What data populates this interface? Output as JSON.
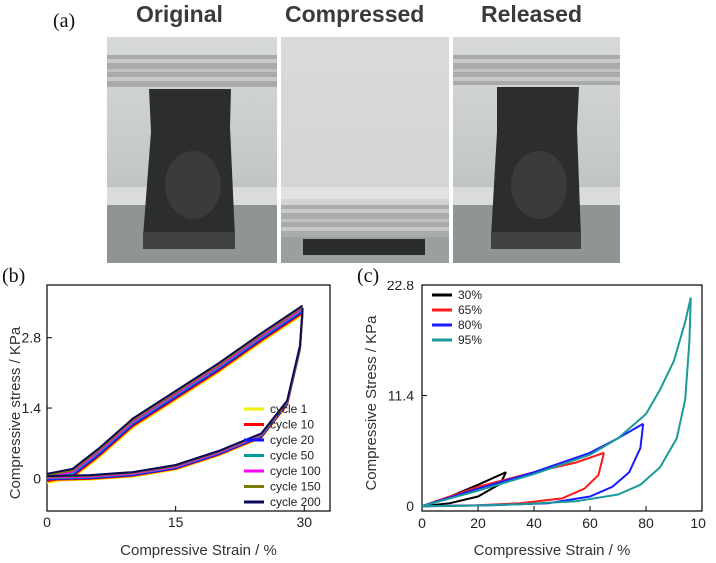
{
  "figure": {
    "panel_a_label": "(a)",
    "panel_b_label": "(b)",
    "panel_c_label": "(c)",
    "photo_titles": [
      "Original",
      "Compressed",
      "Released"
    ]
  },
  "chart_data": [
    {
      "type": "line",
      "xlabel": "Compressive Strain / %",
      "ylabel": "Compressive stress / KPa",
      "xlim": [
        0,
        33
      ],
      "ylim": [
        -0.65,
        3.85
      ],
      "x_ticks": [
        0,
        15,
        30
      ],
      "y_ticks": [
        0,
        1.4,
        2.8
      ],
      "legend_position": "bottom-right",
      "series": [
        {
          "name": "cycle 1",
          "color": "#f0f000"
        },
        {
          "name": "cycle 10",
          "color": "#ff0000"
        },
        {
          "name": "cycle 20",
          "color": "#1010ff"
        },
        {
          "name": "cycle 50",
          "color": "#009c9c"
        },
        {
          "name": "cycle 100",
          "color": "#ff00ff"
        },
        {
          "name": "cycle 150",
          "color": "#7c7c00"
        },
        {
          "name": "cycle 200",
          "color": "#0a0a5a"
        }
      ],
      "loading_curve": {
        "x": [
          0,
          3,
          6,
          10,
          15,
          20,
          25,
          29.8
        ],
        "y": [
          0,
          0.1,
          0.5,
          1.1,
          1.65,
          2.2,
          2.8,
          3.35
        ]
      },
      "unloading_curve": {
        "x": [
          29.8,
          29.5,
          28,
          25,
          20,
          15,
          10,
          5,
          0
        ],
        "y": [
          3.35,
          2.6,
          1.5,
          0.85,
          0.5,
          0.22,
          0.08,
          0.02,
          0
        ]
      }
    },
    {
      "type": "line",
      "xlabel": "Compressive Strain / %",
      "ylabel": "Compressive Stress / KPa",
      "xlim": [
        0,
        100
      ],
      "ylim": [
        -0.5,
        22.8
      ],
      "x_ticks": [
        0,
        20,
        40,
        60,
        80,
        100
      ],
      "y_ticks": [
        0,
        11.4,
        22.8
      ],
      "legend_position": "top-left",
      "series": [
        {
          "name": "30%",
          "color": "#000000",
          "loading": {
            "x": [
              0,
              10,
              20,
              30
            ],
            "y": [
              0,
              1,
              2.2,
              3.5
            ]
          },
          "unloading": {
            "x": [
              30,
              28,
              20,
              10,
              0
            ],
            "y": [
              3.5,
              2.3,
              1,
              0.3,
              0
            ]
          }
        },
        {
          "name": "65%",
          "color": "#ff1a1a",
          "loading": {
            "x": [
              0,
              20,
              40,
              55,
              65
            ],
            "y": [
              0,
              2,
              3.5,
              4.5,
              5.5
            ]
          },
          "unloading": {
            "x": [
              65,
              63,
              58,
              50,
              35,
              20,
              0
            ],
            "y": [
              5.5,
              3.2,
              1.8,
              0.8,
              0.3,
              0.1,
              0
            ]
          }
        },
        {
          "name": "80%",
          "color": "#1a1aff",
          "loading": {
            "x": [
              0,
              20,
              40,
              60,
              70,
              79
            ],
            "y": [
              0,
              1.8,
              3.5,
              5.5,
              7,
              8.5
            ]
          },
          "unloading": {
            "x": [
              79,
              78,
              74,
              68,
              60,
              45,
              25,
              0
            ],
            "y": [
              8.5,
              6,
              3.5,
              2,
              1,
              0.3,
              0.1,
              0
            ]
          }
        },
        {
          "name": "95%",
          "color": "#1a9a9a",
          "loading": {
            "x": [
              0,
              20,
              40,
              60,
              70,
              80,
              85,
              90,
              94,
              96
            ],
            "y": [
              0,
              1.6,
              3.3,
              5.3,
              7,
              9.5,
              12,
              15,
              19,
              21.5
            ]
          },
          "unloading": {
            "x": [
              96,
              95.5,
              94,
              91,
              85,
              78,
              70,
              55,
              35,
              15,
              0
            ],
            "y": [
              21.5,
              17,
              11,
              7,
              4,
              2.2,
              1.2,
              0.5,
              0.2,
              0.05,
              0
            ]
          }
        }
      ]
    }
  ]
}
